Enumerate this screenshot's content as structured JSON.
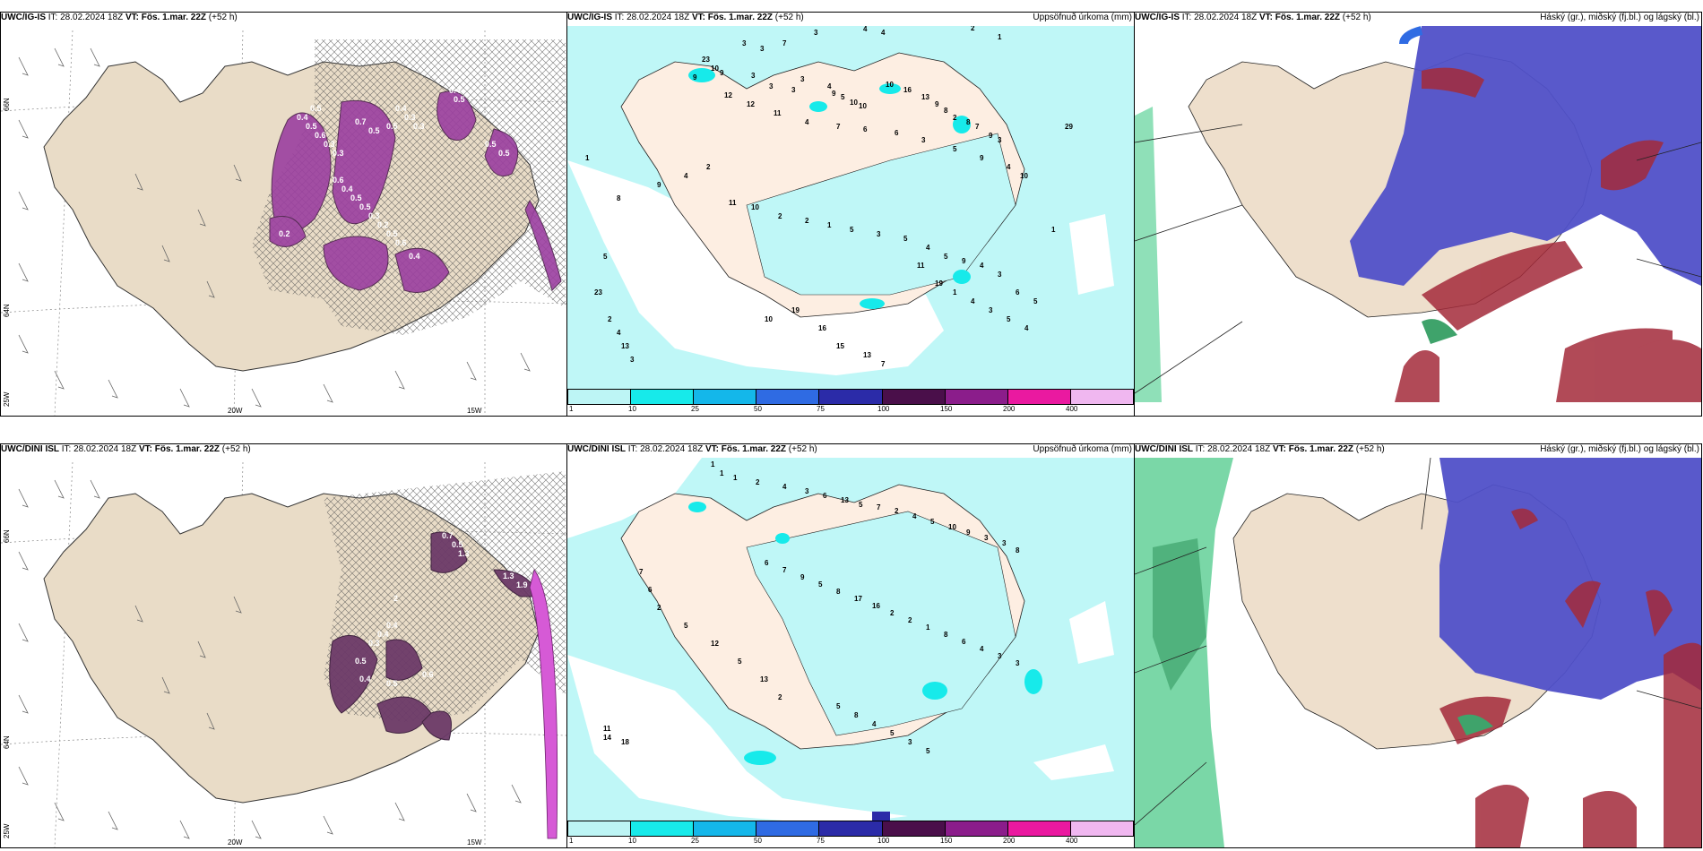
{
  "run_info": {
    "it": "IT: 28.02.2024 18Z",
    "vt_label": "VT: Fös. 1.mar. 22Z",
    "lead": "(+52 h)"
  },
  "models": {
    "top": "UWC/IG-IS",
    "bottom": "UWC/DINI ISL"
  },
  "panel_titles": {
    "precip": "Uppsöfnuð úrkoma (mm)",
    "cloud": "Háský (gr.), miðský (fj.bl.) og lágský (bl.)"
  },
  "axes": {
    "lat_labels": [
      "66N",
      "64N",
      "25W"
    ],
    "lon_labels": [
      "20W",
      "15W"
    ]
  },
  "colorbar": {
    "colors": [
      "#bdf5f5",
      "#17eaea",
      "#14b7ea",
      "#2f6be3",
      "#2b2ba8",
      "#4a0f4a",
      "#8b1d8b",
      "#ea19a0",
      "#f0b7f0"
    ],
    "ticks": [
      "1",
      "10",
      "25",
      "50",
      "75",
      "100",
      "150",
      "200",
      "400"
    ]
  },
  "precip_top_values": [
    "3",
    "4",
    "4",
    "2",
    "1",
    "3",
    "3",
    "7",
    "23",
    "10",
    "9",
    "3",
    "3",
    "3",
    "3",
    "4",
    "9",
    "5",
    "10",
    "10",
    "10",
    "16",
    "13",
    "9",
    "8",
    "2",
    "8",
    "7",
    "9",
    "3",
    "9",
    "12",
    "12",
    "11",
    "4",
    "7",
    "6",
    "6",
    "3",
    "5",
    "9",
    "4",
    "10",
    "29",
    "1",
    "8",
    "9",
    "4",
    "2",
    "11",
    "10",
    "2",
    "2",
    "1",
    "5",
    "3",
    "5",
    "4",
    "5",
    "9",
    "4",
    "3",
    "6",
    "5",
    "1",
    "5",
    "23",
    "2",
    "4",
    "13",
    "3",
    "10",
    "19",
    "16",
    "15",
    "13",
    "7",
    "11",
    "19",
    "1",
    "4",
    "3",
    "5",
    "4"
  ],
  "precip_bottom_values": [
    "1",
    "1",
    "1",
    "2",
    "4",
    "3",
    "6",
    "13",
    "5",
    "7",
    "2",
    "4",
    "5",
    "10",
    "9",
    "3",
    "3",
    "8",
    "6",
    "7",
    "9",
    "5",
    "8",
    "17",
    "16",
    "2",
    "2",
    "1",
    "8",
    "6",
    "4",
    "3",
    "3",
    "7",
    "6",
    "2",
    "5",
    "12",
    "5",
    "13",
    "2",
    "11",
    "14",
    "18",
    "5",
    "8",
    "4",
    "5",
    "3",
    "5"
  ],
  "wind_top_values": [
    "0.5",
    "0.4",
    "0.5",
    "0.6",
    "0.3",
    "0.3",
    "0.7",
    "0.5",
    "0.5",
    "0.4",
    "0.3",
    "0.3",
    "0.6",
    "0.4",
    "0.5",
    "0.5",
    "0.3",
    "0.2",
    "0.5",
    "0.6",
    "0.4",
    "0.4",
    "0.5",
    "0.5",
    "0.5",
    "0.2"
  ],
  "wind_bottom_values": [
    "0.7",
    "0.5",
    "1.3",
    "2",
    "0.4",
    "0.4",
    "0.3",
    "0.5",
    "0.4",
    "0.5",
    "0.6",
    "1.3",
    "1.9"
  ]
}
